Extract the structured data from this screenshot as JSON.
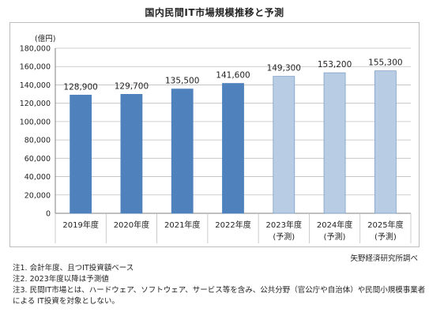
{
  "title": "国内民間IT市場規模推移と予測",
  "source": "矢野経済研究所調べ",
  "notes": [
    "注1. 会計年度、且つIT投資額ベース",
    "注2. 2023年度以降は予測値",
    "注3. 民間IT市場とは、ハードウェア、ソフトウェア、サービス等を含み、公共分野（官公庁や自治体）や民間小規模事業者",
    "による IT投資を対象としない。"
  ],
  "chart_data": {
    "type": "bar",
    "unit_label": "(億円)",
    "ylim": [
      0,
      180000
    ],
    "yticks": [
      0,
      20000,
      40000,
      60000,
      80000,
      100000,
      120000,
      140000,
      160000,
      180000
    ],
    "ytick_labels": [
      "0",
      "20,000",
      "40,000",
      "60,000",
      "80,000",
      "100,000",
      "120,000",
      "140,000",
      "160,000",
      "180,000"
    ],
    "categories": [
      "2019年度",
      "2020年度",
      "2021年度",
      "2022年度",
      "2023年度",
      "2024年度",
      "2025年度"
    ],
    "category_sublabels": [
      "",
      "",
      "",
      "",
      "(予測)",
      "(予測)",
      "(予測)"
    ],
    "values": [
      128900,
      129700,
      135500,
      141600,
      149300,
      153200,
      155300
    ],
    "value_labels": [
      "128,900",
      "129,700",
      "135,500",
      "141,600",
      "149,300",
      "153,200",
      "155,300"
    ],
    "forecast": [
      false,
      false,
      false,
      false,
      true,
      true,
      true
    ],
    "colors": {
      "actual": "#4f81bd",
      "forecast": "#b8cce4",
      "forecast_border": "#7f9fc8",
      "grid": "#bfbfbf"
    },
    "grid": true
  }
}
